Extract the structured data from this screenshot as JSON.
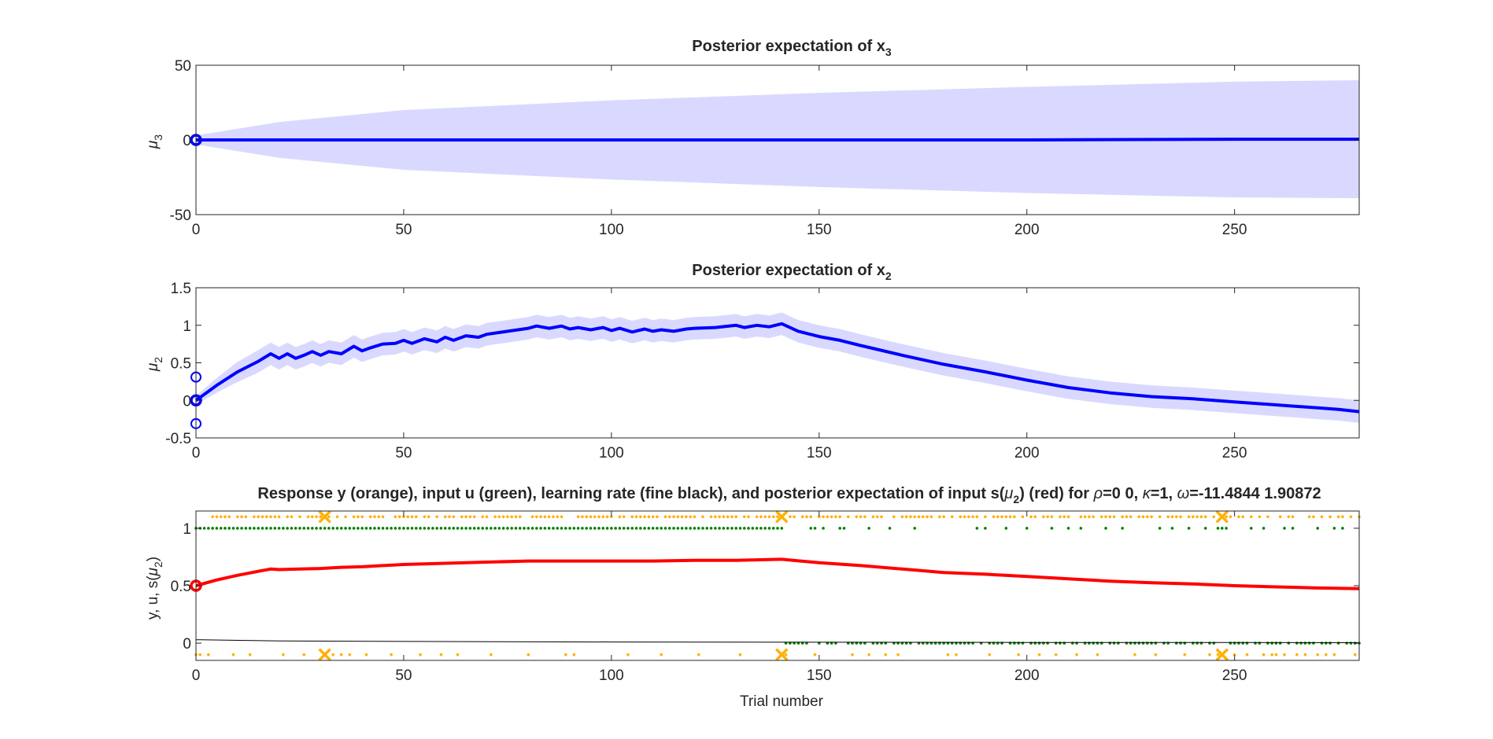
{
  "chart_data": [
    {
      "type": "line",
      "title": "Posterior expectation of x",
      "title_sub": "3",
      "xlabel": "",
      "ylabel": "μ",
      "ylabel_sub": "3",
      "xlim": [
        0,
        280
      ],
      "ylim": [
        -50,
        50
      ],
      "xticks": [
        0,
        50,
        100,
        150,
        200,
        250
      ],
      "yticks": [
        -50,
        0,
        50
      ],
      "colors": {
        "line": "#0000ff",
        "band": "#d9d9ff"
      },
      "series": [
        {
          "x": [
            0,
            50,
            100,
            150,
            200,
            250,
            280
          ],
          "y": [
            0,
            0,
            0,
            0,
            0,
            0.5,
            0.5
          ]
        }
      ],
      "band": {
        "x": [
          0,
          20,
          50,
          100,
          150,
          200,
          250,
          280
        ],
        "upper": [
          3,
          12,
          20,
          26.5,
          31.5,
          35.5,
          39,
          40
        ],
        "lower": [
          -3,
          -12,
          -20,
          -26.5,
          -31.5,
          -35.5,
          -38.5,
          -39
        ]
      },
      "initial_markers": [
        {
          "x": 0,
          "y": 0
        }
      ]
    },
    {
      "type": "line",
      "title": "Posterior expectation of x",
      "title_sub": "2",
      "xlabel": "",
      "ylabel": "μ",
      "ylabel_sub": "2",
      "xlim": [
        0,
        280
      ],
      "ylim": [
        -0.5,
        1.5
      ],
      "xticks": [
        0,
        50,
        100,
        150,
        200,
        250
      ],
      "yticks": [
        -0.5,
        0,
        0.5,
        1,
        1.5
      ],
      "colors": {
        "line": "#0000ff",
        "band": "#d9d9ff"
      },
      "series": [
        {
          "x": [
            0,
            5,
            10,
            15,
            18,
            20,
            22,
            24,
            26,
            28,
            30,
            32,
            35,
            38,
            40,
            42,
            45,
            48,
            50,
            52,
            55,
            58,
            60,
            62,
            65,
            68,
            70,
            75,
            80,
            82,
            85,
            88,
            90,
            92,
            95,
            98,
            100,
            102,
            105,
            108,
            110,
            112,
            115,
            118,
            120,
            125,
            130,
            132,
            135,
            138,
            141,
            145,
            150,
            155,
            160,
            170,
            180,
            190,
            200,
            210,
            220,
            230,
            240,
            250,
            260,
            270,
            275,
            280
          ],
          "y": [
            0,
            0.2,
            0.38,
            0.52,
            0.62,
            0.56,
            0.62,
            0.56,
            0.6,
            0.65,
            0.6,
            0.65,
            0.62,
            0.72,
            0.66,
            0.7,
            0.75,
            0.76,
            0.8,
            0.76,
            0.82,
            0.78,
            0.84,
            0.8,
            0.86,
            0.84,
            0.88,
            0.92,
            0.96,
            0.99,
            0.96,
            0.99,
            0.95,
            0.97,
            0.94,
            0.97,
            0.93,
            0.96,
            0.91,
            0.95,
            0.92,
            0.94,
            0.92,
            0.95,
            0.96,
            0.97,
            1.0,
            0.97,
            1.0,
            0.98,
            1.02,
            0.92,
            0.85,
            0.8,
            0.73,
            0.6,
            0.48,
            0.38,
            0.27,
            0.17,
            0.1,
            0.05,
            0.02,
            -0.02,
            -0.06,
            -0.1,
            -0.12,
            -0.15
          ]
        }
      ],
      "band_halfwidth": 0.15,
      "initial_markers": [
        {
          "x": 0,
          "y": 0.31
        },
        {
          "x": 0,
          "y": 0
        },
        {
          "x": 0,
          "y": -0.31
        }
      ]
    },
    {
      "type": "scatter",
      "title": "Response y (orange), input u (green), learning rate (fine black), and posterior expectation of input s(",
      "title_mu": "μ",
      "title_sub": "2",
      "title_mid": ") (red) for ",
      "title_rho": "ρ",
      "title_rho_val": "=0  0, ",
      "title_kappa": "κ",
      "title_kappa_val": "=1, ",
      "title_omega": "ω",
      "title_omega_val": "=-11.4844      1.90872",
      "xlabel": "Trial number",
      "ylabel": "y, u, s(",
      "ylabel_mu": "μ",
      "ylabel_sub": "2",
      "ylabel_end": ")",
      "xlim": [
        0,
        280
      ],
      "ylim": [
        -0.15,
        1.15
      ],
      "xticks": [
        0,
        50,
        100,
        150,
        200,
        250
      ],
      "yticks": [
        0,
        0.5,
        1
      ],
      "colors": {
        "u": "#008000",
        "y": "#ffb000",
        "s": "#ff0000",
        "lr": "#000000",
        "x": "#ffb000"
      },
      "s_series": {
        "x": [
          0,
          5,
          10,
          15,
          18,
          20,
          25,
          30,
          35,
          40,
          45,
          50,
          60,
          70,
          80,
          90,
          100,
          110,
          120,
          130,
          141,
          150,
          160,
          170,
          180,
          190,
          200,
          210,
          220,
          230,
          240,
          250,
          260,
          270,
          280
        ],
        "y": [
          0.5,
          0.55,
          0.59,
          0.625,
          0.645,
          0.64,
          0.645,
          0.65,
          0.66,
          0.665,
          0.675,
          0.685,
          0.695,
          0.705,
          0.715,
          0.715,
          0.715,
          0.715,
          0.72,
          0.72,
          0.73,
          0.7,
          0.675,
          0.645,
          0.615,
          0.6,
          0.58,
          0.56,
          0.54,
          0.525,
          0.515,
          0.5,
          0.49,
          0.48,
          0.475
        ]
      },
      "lr_series": {
        "x": [
          0,
          20,
          50,
          100,
          150,
          200,
          250,
          280
        ],
        "y": [
          0.03,
          0.02,
          0.015,
          0.01,
          0.008,
          0.006,
          0.005,
          0.004
        ]
      },
      "initial_marker": {
        "x": 0,
        "y": 0.5
      },
      "u_one_ranges": [
        [
          0,
          141
        ],
        [
          148,
          149
        ],
        [
          151,
          151
        ],
        [
          155,
          156
        ],
        [
          162,
          162
        ],
        [
          167,
          167
        ],
        [
          173,
          173
        ],
        [
          188,
          188
        ],
        [
          190,
          190
        ],
        [
          195,
          195
        ],
        [
          200,
          200
        ],
        [
          206,
          206
        ],
        [
          210,
          210
        ],
        [
          213,
          213
        ],
        [
          219,
          219
        ],
        [
          223,
          223
        ],
        [
          232,
          232
        ],
        [
          235,
          235
        ],
        [
          239,
          239
        ],
        [
          243,
          243
        ],
        [
          246,
          248
        ],
        [
          254,
          254
        ],
        [
          257,
          257
        ],
        [
          262,
          262
        ],
        [
          264,
          264
        ],
        [
          270,
          270
        ],
        [
          274,
          274
        ],
        [
          276,
          276
        ]
      ],
      "y_zero": [
        0,
        1,
        3,
        9,
        13,
        21,
        26,
        33,
        35,
        37,
        41,
        47,
        54,
        59,
        63,
        71,
        80,
        89,
        91,
        104,
        112,
        121,
        131,
        142,
        149,
        158,
        162,
        166,
        169,
        181,
        183,
        191,
        198,
        203,
        207,
        212,
        217,
        226,
        231,
        238,
        244,
        246,
        250,
        253,
        257,
        259,
        260,
        262,
        265,
        267,
        270,
        272,
        274,
        279
      ],
      "missed_trials": [
        31,
        141,
        247
      ]
    }
  ]
}
